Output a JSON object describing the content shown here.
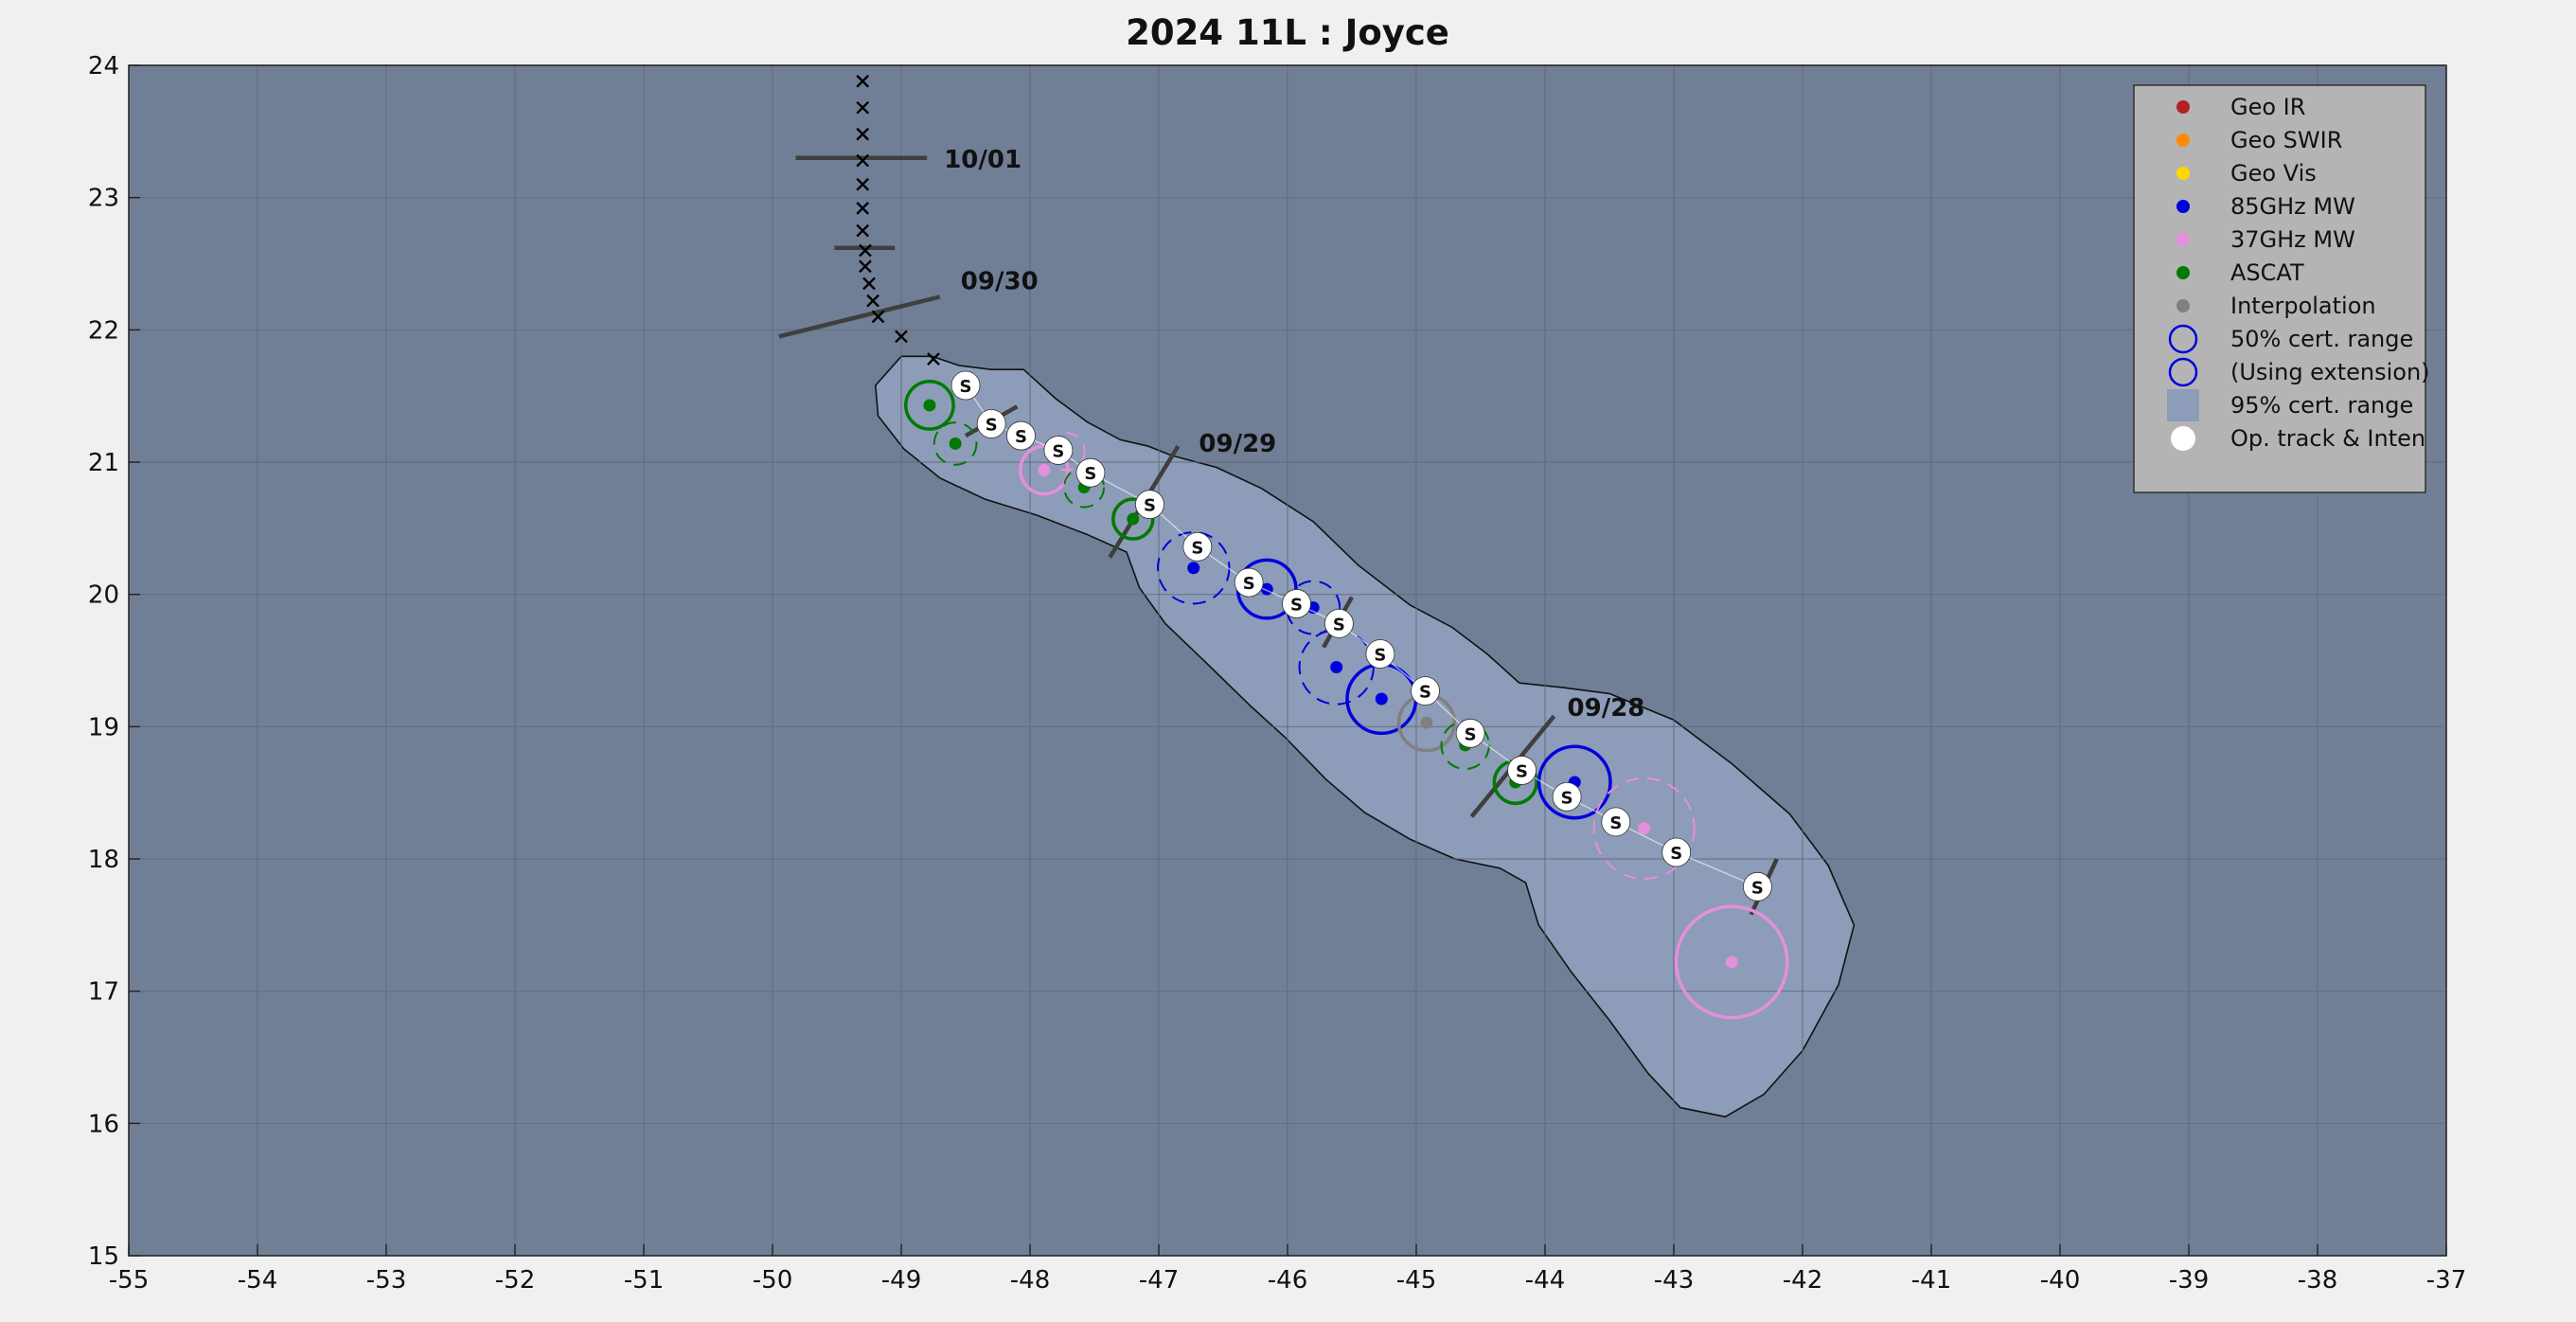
{
  "chart_data": {
    "type": "scatter",
    "title": "2024  11L :  Joyce",
    "xlim": [
      -55,
      -37
    ],
    "ylim": [
      15,
      24
    ],
    "x_ticks": [
      -55,
      -54,
      -53,
      -52,
      -51,
      -50,
      -49,
      -48,
      -47,
      -46,
      -45,
      -44,
      -43,
      -42,
      -41,
      -40,
      -39,
      -38,
      -37
    ],
    "y_ticks": [
      15,
      16,
      17,
      18,
      19,
      20,
      21,
      22,
      23,
      24
    ],
    "grid": true,
    "legend_placement": "top-right",
    "colors": {
      "plot_bg": "#717f96",
      "cert95_fill": "#8d9cb8",
      "geo_ir": "#b22222",
      "geo_swir": "#ff8c00",
      "geo_vis": "#ffd700",
      "mw85": "#0000dd",
      "mw37": "#e58fdc",
      "ascat": "#007a00",
      "interp": "#808080",
      "legend_bg": "#b4b4b4"
    },
    "legend": [
      {
        "label": "Geo IR",
        "marker": "dot",
        "color": "#b22222"
      },
      {
        "label": "Geo SWIR",
        "marker": "dot",
        "color": "#ff8c00"
      },
      {
        "label": "Geo Vis",
        "marker": "dot",
        "color": "#ffd700"
      },
      {
        "label": "85GHz MW",
        "marker": "dot",
        "color": "#0000dd"
      },
      {
        "label": "37GHz MW",
        "marker": "dot",
        "color": "#e58fdc"
      },
      {
        "label": "ASCAT",
        "marker": "dot",
        "color": "#007a00"
      },
      {
        "label": "Interpolation",
        "marker": "dot",
        "color": "#808080"
      },
      {
        "label": "50% cert. range",
        "marker": "circle",
        "color": "#0000dd"
      },
      {
        "label": "(Using extension)",
        "marker": "circle",
        "color": "#0000dd"
      },
      {
        "label": "95% cert. range",
        "marker": "square",
        "color": "#8d9cb8"
      },
      {
        "label": "Op. track & Inten",
        "marker": "whitedot",
        "color": "#ffffff"
      }
    ],
    "date_labels": [
      {
        "text": "10/01",
        "x": -49.28,
        "y": 23.3,
        "angle": 0
      },
      {
        "text": "09/30",
        "x": -49.1,
        "y": 22.1,
        "angle": 15
      },
      {
        "text": "09/29",
        "x": -47.0,
        "y": 20.75,
        "angle": 56
      },
      {
        "text": "09/28",
        "x": -44.3,
        "y": 18.7,
        "angle": 48
      }
    ],
    "forecast_track": [
      {
        "x": -49.3,
        "y": 23.88
      },
      {
        "x": -49.3,
        "y": 23.68
      },
      {
        "x": -49.3,
        "y": 23.48
      },
      {
        "x": -49.3,
        "y": 23.28
      },
      {
        "x": -49.3,
        "y": 23.1
      },
      {
        "x": -49.3,
        "y": 22.92
      },
      {
        "x": -49.3,
        "y": 22.75
      },
      {
        "x": -49.28,
        "y": 22.6
      },
      {
        "x": -49.28,
        "y": 22.48
      },
      {
        "x": -49.25,
        "y": 22.35
      },
      {
        "x": -49.22,
        "y": 22.22
      },
      {
        "x": -49.18,
        "y": 22.1
      },
      {
        "x": -49.0,
        "y": 21.95
      },
      {
        "x": -48.75,
        "y": 21.78
      }
    ],
    "op_track": [
      {
        "x": -48.5,
        "y": 21.58
      },
      {
        "x": -48.3,
        "y": 21.29
      },
      {
        "x": -48.07,
        "y": 21.2
      },
      {
        "x": -47.78,
        "y": 21.09
      },
      {
        "x": -47.53,
        "y": 20.92
      },
      {
        "x": -47.07,
        "y": 20.68
      },
      {
        "x": -46.7,
        "y": 20.36
      },
      {
        "x": -46.3,
        "y": 20.09
      },
      {
        "x": -45.93,
        "y": 19.93
      },
      {
        "x": -45.6,
        "y": 19.78
      },
      {
        "x": -45.28,
        "y": 19.55
      },
      {
        "x": -44.93,
        "y": 19.27
      },
      {
        "x": -44.58,
        "y": 18.95
      },
      {
        "x": -44.18,
        "y": 18.67
      },
      {
        "x": -43.83,
        "y": 18.47
      },
      {
        "x": -43.45,
        "y": 18.28
      },
      {
        "x": -42.98,
        "y": 18.05
      },
      {
        "x": -42.35,
        "y": 17.79
      }
    ],
    "fixes": [
      {
        "type": "ascat",
        "x": -48.78,
        "y": 21.43,
        "radius": 0.18,
        "extension": false
      },
      {
        "type": "ascat",
        "x": -48.58,
        "y": 21.14,
        "radius": 0.16,
        "extension": true
      },
      {
        "type": "mw37",
        "x": -47.89,
        "y": 20.94,
        "radius": 0.18,
        "extension": false
      },
      {
        "type": "mw37",
        "x": -47.72,
        "y": 21.08,
        "radius": 0.14,
        "extension": true
      },
      {
        "type": "ascat",
        "x": -47.58,
        "y": 20.81,
        "radius": 0.15,
        "extension": true
      },
      {
        "type": "ascat",
        "x": -47.2,
        "y": 20.57,
        "radius": 0.15,
        "extension": false
      },
      {
        "type": "mw85",
        "x": -46.73,
        "y": 20.2,
        "radius": 0.27,
        "extension": true
      },
      {
        "type": "mw85",
        "x": -46.16,
        "y": 20.04,
        "radius": 0.22,
        "extension": false
      },
      {
        "type": "mw85",
        "x": -45.8,
        "y": 19.9,
        "radius": 0.2,
        "extension": true
      },
      {
        "type": "mw85",
        "x": -45.62,
        "y": 19.45,
        "radius": 0.28,
        "extension": true
      },
      {
        "type": "mw85",
        "x": -45.27,
        "y": 19.21,
        "radius": 0.26,
        "extension": false
      },
      {
        "type": "interp",
        "x": -44.92,
        "y": 19.03,
        "radius": 0.21,
        "extension": false
      },
      {
        "type": "ascat",
        "x": -44.62,
        "y": 18.86,
        "radius": 0.18,
        "extension": true
      },
      {
        "type": "ascat",
        "x": -44.23,
        "y": 18.58,
        "radius": 0.16,
        "extension": false
      },
      {
        "type": "mw85",
        "x": -43.77,
        "y": 18.58,
        "radius": 0.27,
        "extension": false
      },
      {
        "type": "mw37",
        "x": -43.23,
        "y": 18.23,
        "radius": 0.38,
        "extension": true
      },
      {
        "type": "mw37",
        "x": -42.55,
        "y": 17.22,
        "radius": 0.42,
        "extension": false
      }
    ],
    "cert95_outline": [
      [
        -49.0,
        21.8
      ],
      [
        -48.76,
        21.8
      ],
      [
        -48.55,
        21.73
      ],
      [
        -48.3,
        21.7
      ],
      [
        -48.05,
        21.7
      ],
      [
        -47.8,
        21.48
      ],
      [
        -47.55,
        21.3
      ],
      [
        -47.3,
        21.17
      ],
      [
        -47.08,
        21.12
      ],
      [
        -46.9,
        21.05
      ],
      [
        -46.55,
        20.96
      ],
      [
        -46.2,
        20.8
      ],
      [
        -45.8,
        20.55
      ],
      [
        -45.45,
        20.22
      ],
      [
        -45.05,
        19.92
      ],
      [
        -44.72,
        19.75
      ],
      [
        -44.45,
        19.55
      ],
      [
        -44.2,
        19.33
      ],
      [
        -43.9,
        19.3
      ],
      [
        -43.5,
        19.25
      ],
      [
        -43.0,
        19.05
      ],
      [
        -42.55,
        18.72
      ],
      [
        -42.1,
        18.34
      ],
      [
        -41.8,
        17.95
      ],
      [
        -41.6,
        17.5
      ],
      [
        -41.72,
        17.05
      ],
      [
        -42.0,
        16.55
      ],
      [
        -42.3,
        16.22
      ],
      [
        -42.6,
        16.05
      ],
      [
        -42.95,
        16.12
      ],
      [
        -43.2,
        16.38
      ],
      [
        -43.5,
        16.78
      ],
      [
        -43.8,
        17.15
      ],
      [
        -44.05,
        17.5
      ],
      [
        -44.15,
        17.82
      ],
      [
        -44.35,
        17.93
      ],
      [
        -44.7,
        18.0
      ],
      [
        -45.05,
        18.15
      ],
      [
        -45.4,
        18.35
      ],
      [
        -45.7,
        18.6
      ],
      [
        -46.02,
        18.92
      ],
      [
        -46.28,
        19.15
      ],
      [
        -46.65,
        19.5
      ],
      [
        -46.95,
        19.78
      ],
      [
        -47.15,
        20.05
      ],
      [
        -47.25,
        20.32
      ],
      [
        -47.55,
        20.45
      ],
      [
        -47.95,
        20.6
      ],
      [
        -48.35,
        20.72
      ],
      [
        -48.7,
        20.88
      ],
      [
        -48.98,
        21.1
      ],
      [
        -49.18,
        21.35
      ],
      [
        -49.2,
        21.58
      ]
    ],
    "wind_bars": [
      {
        "x1": -49.82,
        "y1": 23.3,
        "x2": -48.8,
        "y2": 23.3
      },
      {
        "x1": -49.52,
        "y1": 22.62,
        "x2": -49.05,
        "y2": 22.62
      },
      {
        "x1": -49.95,
        "y1": 21.95,
        "x2": -48.7,
        "y2": 22.25
      },
      {
        "x1": -48.5,
        "y1": 21.2,
        "x2": -48.1,
        "y2": 21.42
      },
      {
        "x1": -47.38,
        "y1": 20.28,
        "x2": -46.85,
        "y2": 21.12
      },
      {
        "x1": -45.72,
        "y1": 19.6,
        "x2": -45.5,
        "y2": 19.98
      },
      {
        "x1": -44.57,
        "y1": 18.32,
        "x2": -43.93,
        "y2": 19.08
      },
      {
        "x1": -42.4,
        "y1": 17.58,
        "x2": -42.2,
        "y2": 18.0
      }
    ]
  }
}
